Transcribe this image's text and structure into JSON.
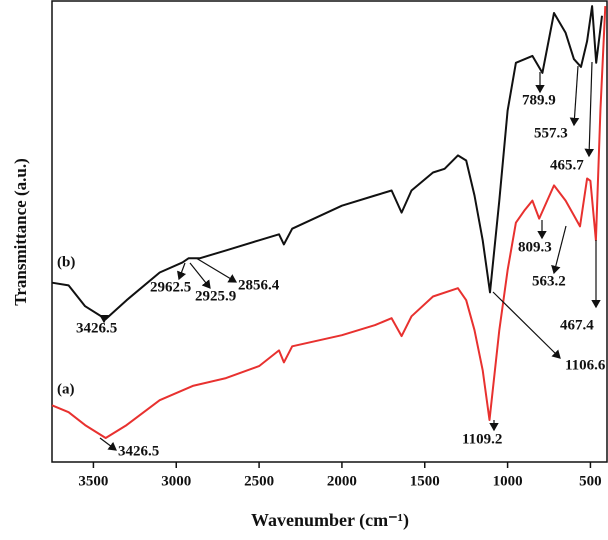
{
  "chart_data": {
    "type": "line",
    "x_label": "Wavenumber (cm⁻¹)",
    "y_label": "Transmittance (a.u.)",
    "xlim": [
      3750,
      400
    ],
    "ylim": [
      0,
      100
    ],
    "xticks": [
      3500,
      3000,
      2500,
      2000,
      1500,
      1000,
      500
    ],
    "series": [
      {
        "name": "(a)",
        "color": "#e8312f",
        "x": [
          3750,
          3650,
          3550,
          3426,
          3300,
          3100,
          2900,
          2700,
          2500,
          2380,
          2350,
          2300,
          2000,
          1800,
          1700,
          1640,
          1580,
          1450,
          1300,
          1250,
          1200,
          1150,
          1109,
          1050,
          1000,
          950,
          900,
          850,
          809,
          720,
          650,
          600,
          563,
          520,
          500,
          467,
          440,
          410
        ],
        "values": [
          12.3,
          10.8,
          8.0,
          5.2,
          8.0,
          13.4,
          16.5,
          18.2,
          20.8,
          24.2,
          21.6,
          25.1,
          27.5,
          29.7,
          31.2,
          27.3,
          31.6,
          35.9,
          37.7,
          35.1,
          28.6,
          19.9,
          9.1,
          28.6,
          41.6,
          51.9,
          54.5,
          56.7,
          52.8,
          60.0,
          56.7,
          53.5,
          51.1,
          61.5,
          61.0,
          48.1,
          76.2,
          98.9
        ]
      },
      {
        "name": "(b)",
        "color": "#111111",
        "x": [
          3750,
          3650,
          3550,
          3426,
          3300,
          3100,
          2962,
          2925,
          2856,
          2700,
          2500,
          2380,
          2350,
          2300,
          2000,
          1800,
          1700,
          1640,
          1580,
          1450,
          1380,
          1300,
          1250,
          1200,
          1150,
          1106,
          1050,
          1000,
          950,
          850,
          790,
          720,
          650,
          600,
          557,
          520,
          490,
          465,
          430
        ],
        "values": [
          38.9,
          38.3,
          33.8,
          31.0,
          35.1,
          41.1,
          43.3,
          44.2,
          44.2,
          45.9,
          48.1,
          49.4,
          47.2,
          50.6,
          55.6,
          57.8,
          58.9,
          54.1,
          58.9,
          62.8,
          63.6,
          66.5,
          65.4,
          57.8,
          48.1,
          36.8,
          56.7,
          76.2,
          86.6,
          88.1,
          84.4,
          97.4,
          93.1,
          87.4,
          85.7,
          91.3,
          98.9,
          86.6,
          96.8
        ]
      }
    ],
    "annotations": [
      "3426.5",
      "2962.5",
      "2925.9",
      "2856.4",
      "1106.6",
      "789.9",
      "557.3",
      "465.7",
      "809.3",
      "563.2",
      "467.4",
      "3426.5",
      "1109.2"
    ]
  }
}
